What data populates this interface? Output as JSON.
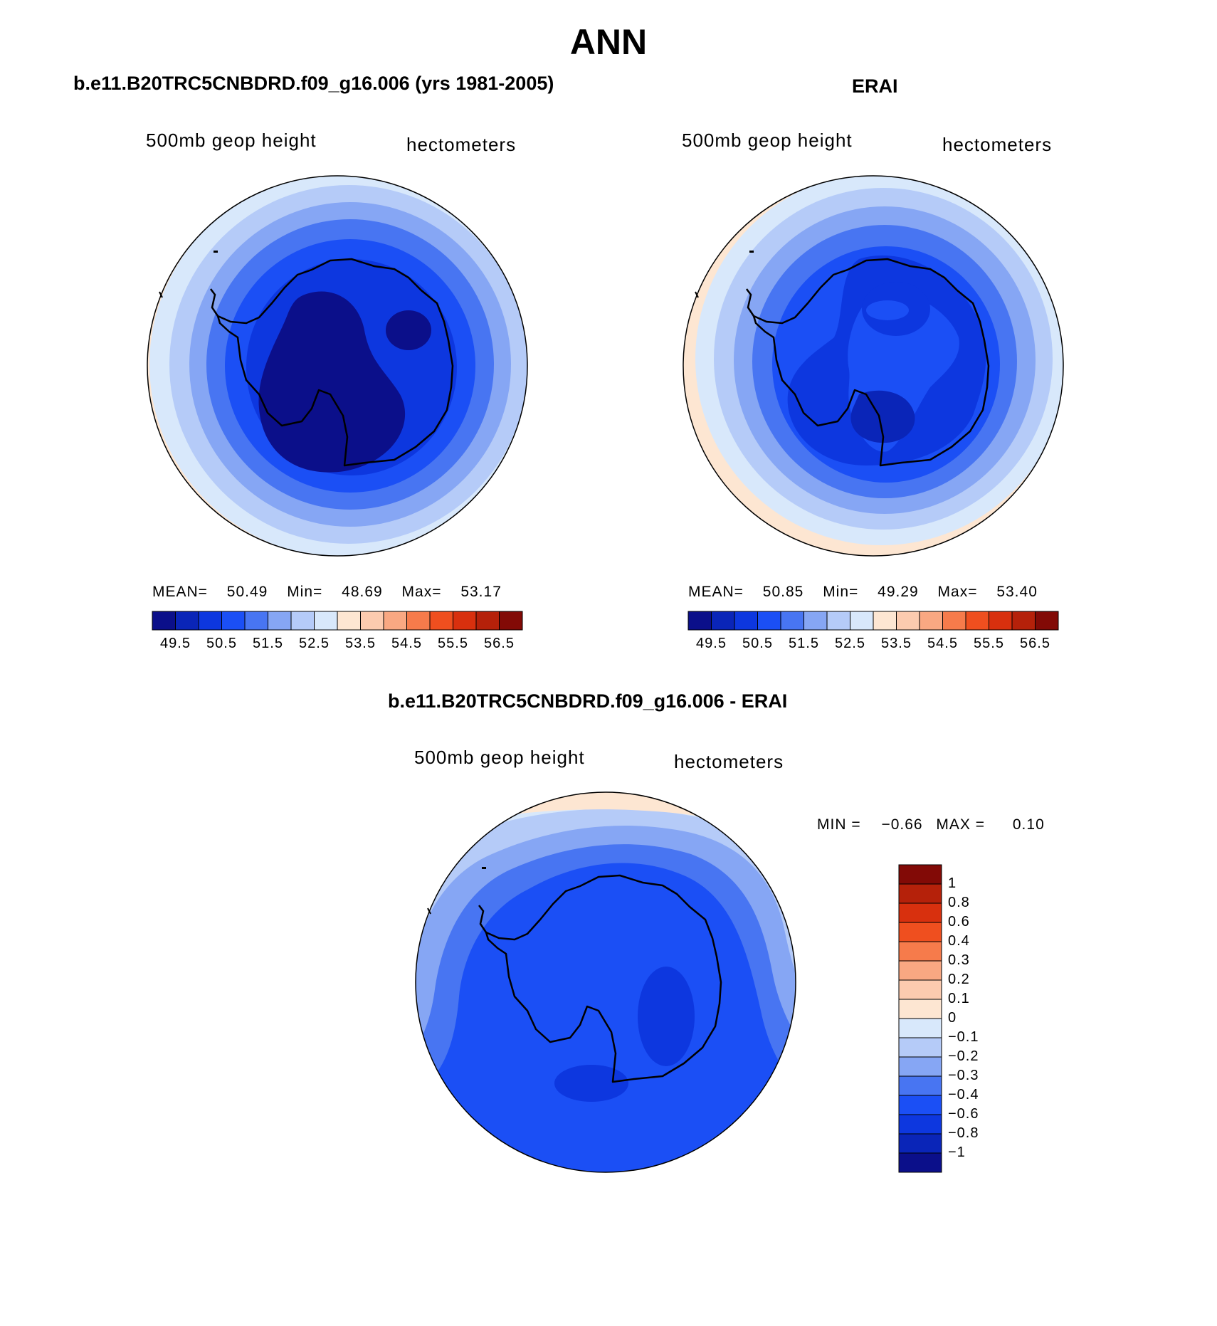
{
  "figure": {
    "title": "ANN"
  },
  "panels": {
    "left": {
      "title": "b.e11.B20TRC5CNBDRD.f09_g16.006 (yrs 1981-2005)",
      "var_label": "500mb geop height",
      "units": "hectometers",
      "mean_label": "MEAN=",
      "mean": "50.49",
      "min_label": "Min=",
      "min": "48.69",
      "max_label": "Max=",
      "max": "53.17"
    },
    "right": {
      "title": "ERAI",
      "var_label": "500mb geop height",
      "units": "hectometers",
      "mean_label": "MEAN=",
      "mean": "50.85",
      "min_label": "Min=",
      "min": "49.29",
      "max_label": "Max=",
      "max": "53.40"
    },
    "diff": {
      "title": "b.e11.B20TRC5CNBDRD.f09_g16.006 - ERAI",
      "var_label": "500mb geop height",
      "units": "hectometers",
      "min_label": "MIN =",
      "min": "−0.66",
      "max_label": "MAX =",
      "max": "0.10"
    }
  },
  "colorbars": {
    "abs_colors": [
      "#0b0f8a",
      "#0a25b8",
      "#0d37df",
      "#1b4ff5",
      "#4875f2",
      "#86a6f4",
      "#b5cbf8",
      "#d8e8fb",
      "#fde6d2",
      "#fccbaf",
      "#f9a882",
      "#f67b4b",
      "#ef4f1f",
      "#d8300e",
      "#b5210a",
      "#820a06"
    ],
    "abs_ticks": [
      "49.5",
      "50.5",
      "51.5",
      "52.5",
      "53.5",
      "54.5",
      "55.5",
      "56.5"
    ],
    "diff_colors": [
      "#820a06",
      "#b5210a",
      "#d8300e",
      "#ef4f1f",
      "#f67b4b",
      "#f9a882",
      "#fccbaf",
      "#fde6d2",
      "#d8e8fb",
      "#b5cbf8",
      "#86a6f4",
      "#4875f2",
      "#1b4ff5",
      "#0d37df",
      "#0a25b8",
      "#0b0f8a"
    ],
    "diff_ticks": [
      "1",
      "0.8",
      "0.6",
      "0.4",
      "0.3",
      "0.2",
      "0.1",
      "0",
      "−0.1",
      "−0.2",
      "−0.3",
      "−0.4",
      "−0.6",
      "−0.8",
      "−1"
    ]
  }
}
